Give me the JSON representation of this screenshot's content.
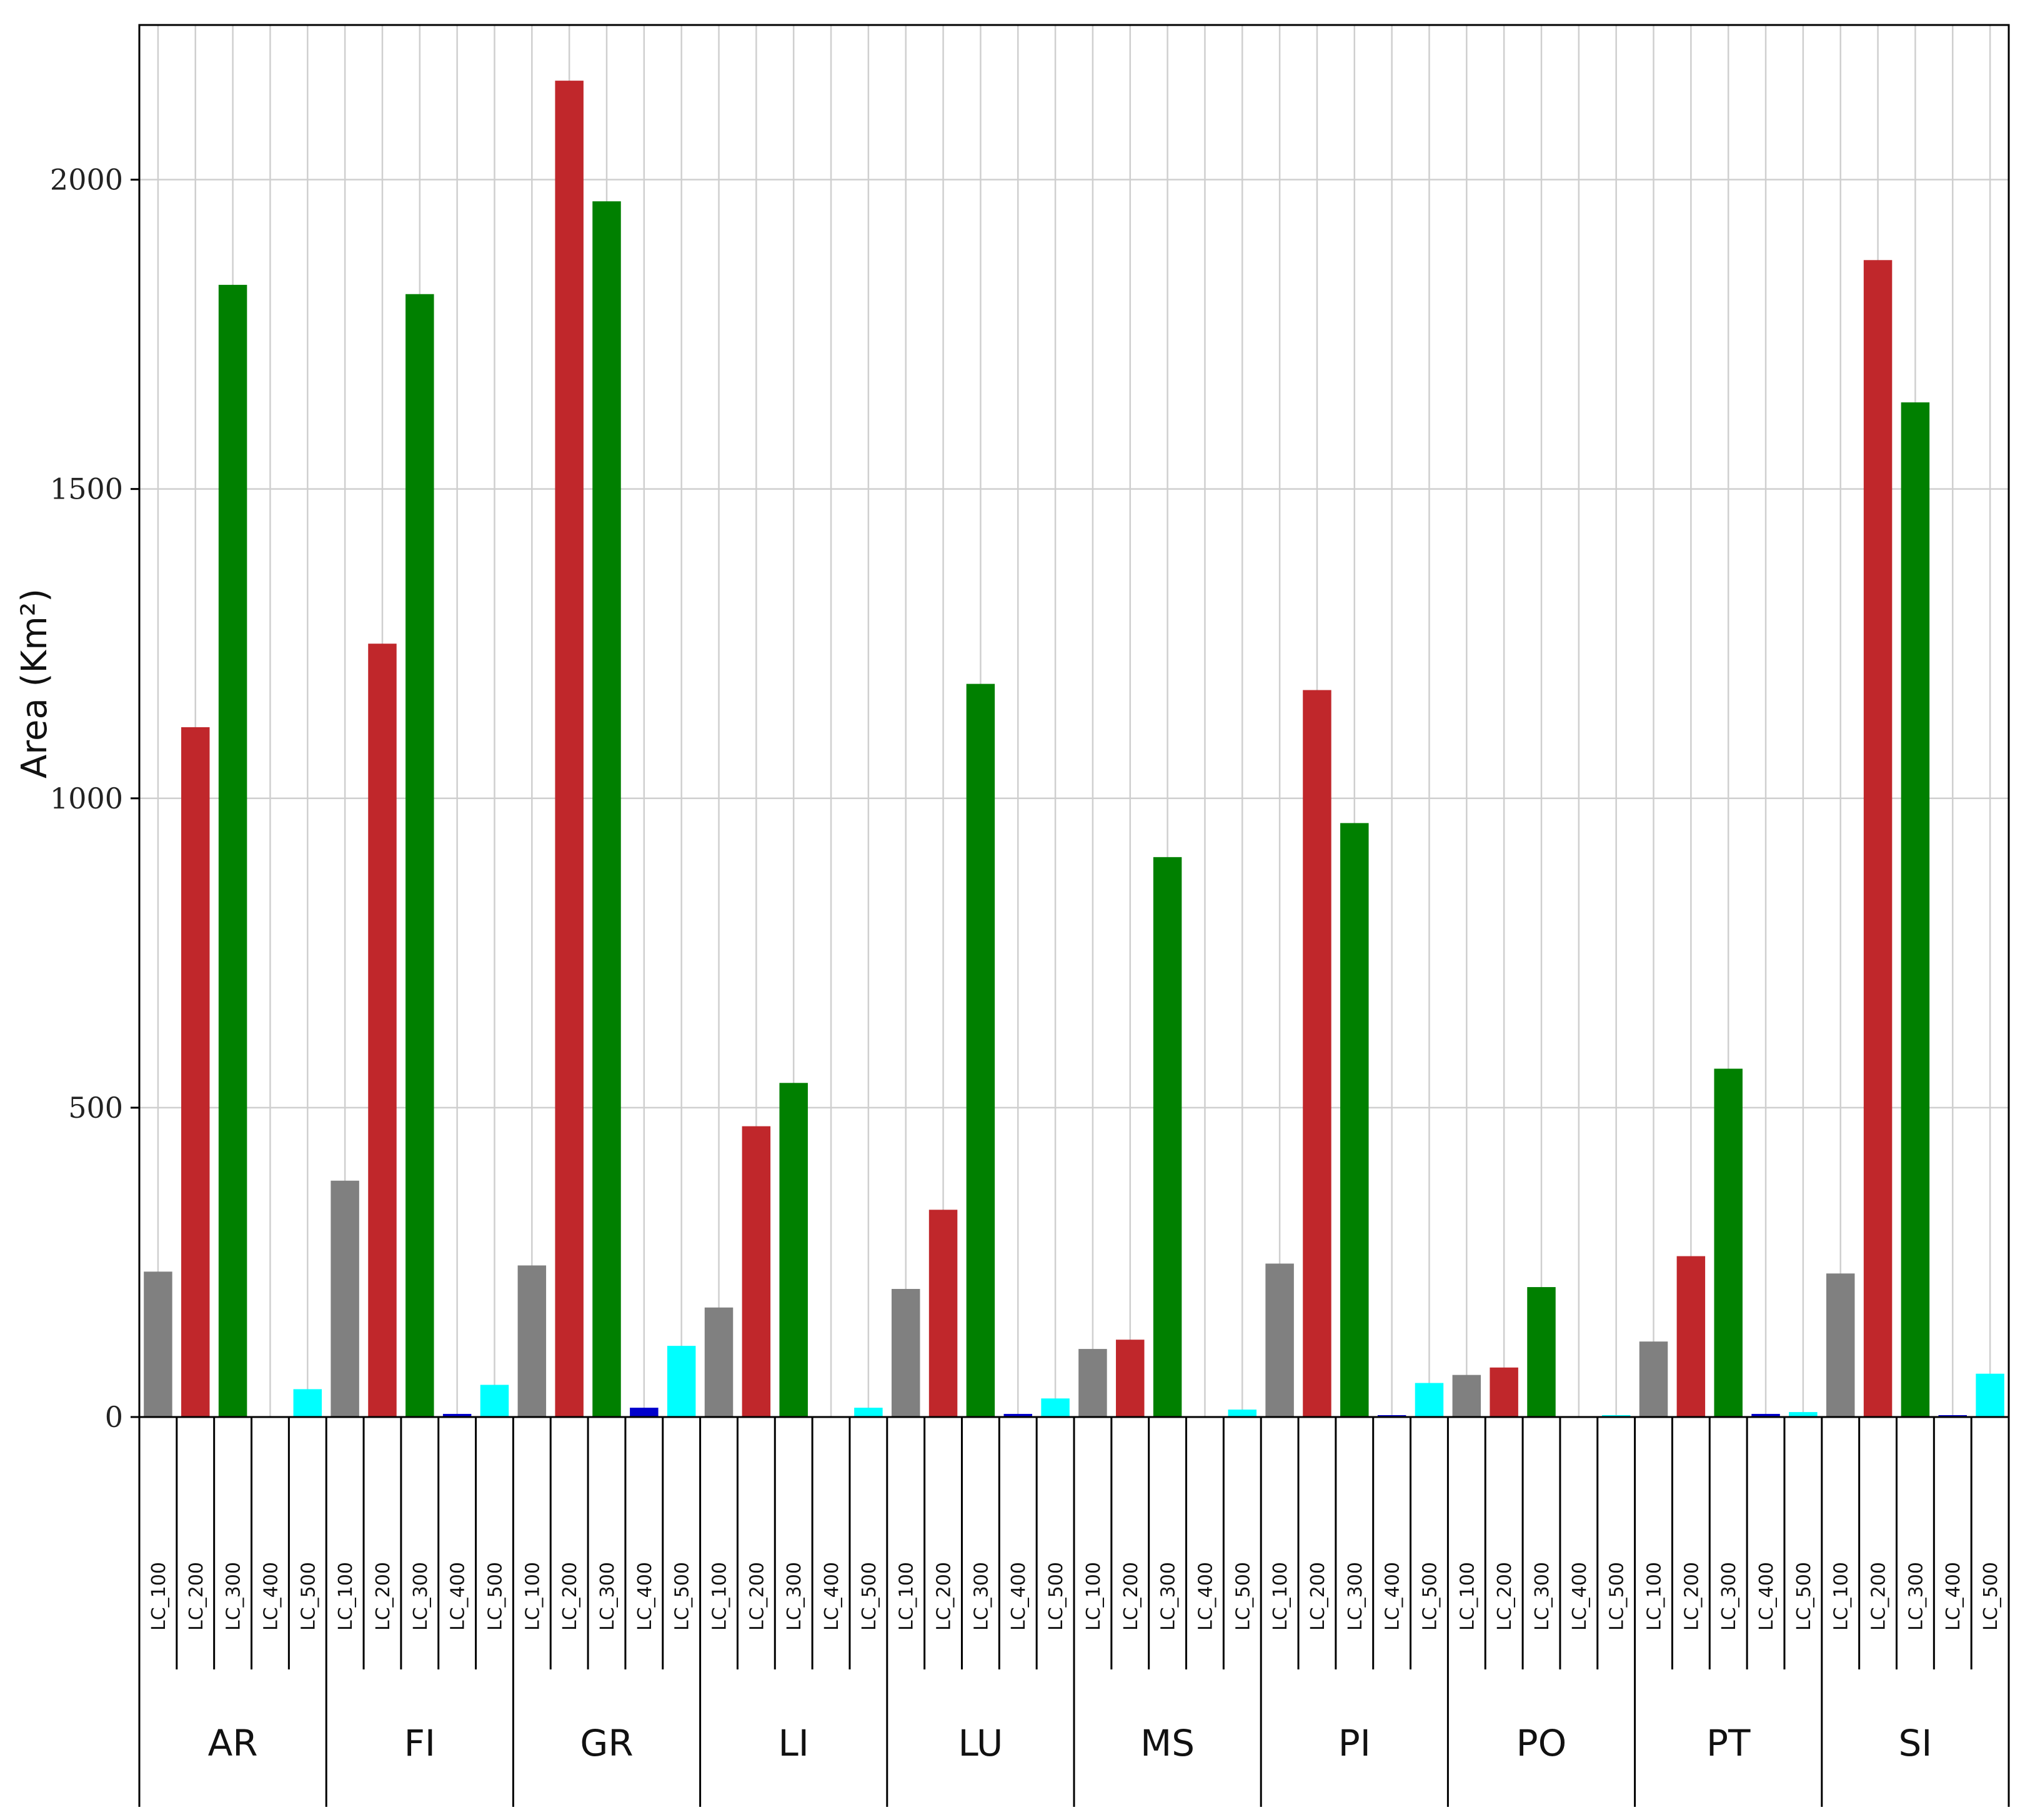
{
  "chart_data": {
    "type": "bar",
    "ylabel": "Area (Km²)",
    "ylim": [
      0,
      2250
    ],
    "yticks": [
      0,
      500,
      1000,
      1500,
      2000
    ],
    "grid": true,
    "groups": [
      "AR",
      "FI",
      "GR",
      "LI",
      "LU",
      "MS",
      "PI",
      "PO",
      "PT",
      "SI"
    ],
    "classes": [
      "LC_100",
      "LC_200",
      "LC_300",
      "LC_400",
      "LC_500"
    ],
    "colors": {
      "LC_100": "#808080",
      "LC_200": "#c0272b",
      "LC_300": "#008000",
      "LC_400": "#0000cc",
      "LC_500": "#00ffff"
    },
    "values": {
      "AR": [
        235,
        1115,
        1830,
        0,
        45
      ],
      "FI": [
        382,
        1250,
        1815,
        5,
        52
      ],
      "GR": [
        245,
        2160,
        1965,
        15,
        115
      ],
      "LI": [
        177,
        470,
        540,
        0,
        15
      ],
      "LU": [
        207,
        335,
        1185,
        5,
        30
      ],
      "MS": [
        110,
        125,
        905,
        0,
        12
      ],
      "PI": [
        248,
        1175,
        960,
        2,
        55
      ],
      "PO": [
        68,
        80,
        210,
        0,
        2
      ],
      "PT": [
        122,
        260,
        563,
        5,
        8
      ],
      "SI": [
        232,
        1870,
        1640,
        2,
        70
      ]
    }
  }
}
